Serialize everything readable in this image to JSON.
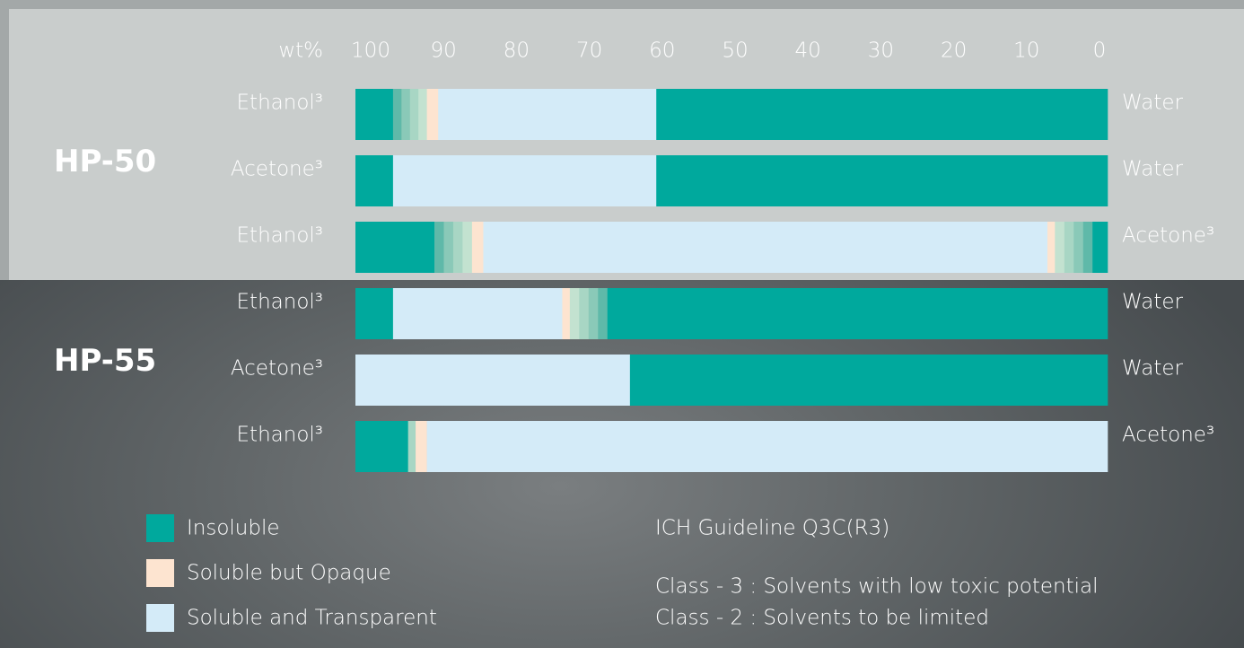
{
  "chart_data": {
    "type": "bar",
    "axis_label": "wt%",
    "xlim": [
      100,
      0
    ],
    "xticks": [
      100,
      90,
      80,
      70,
      60,
      50,
      40,
      30,
      20,
      10,
      0
    ],
    "groups": [
      {
        "name": "HP-50",
        "rows": [
          {
            "left": "Ethanol³",
            "right": "Water",
            "segments": [
              {
                "color": "#00a99d",
                "value": 5
              },
              {
                "color": [
                  "#5fb9a9",
                  "#8ac9b8",
                  "#a8d6c4",
                  "#c3e2d0"
                ],
                "value": 4.5
              },
              {
                "color": "#fde4d0",
                "value": 1.5
              },
              {
                "color": "#d4ebf8",
                "value": 29
              },
              {
                "color": "#00a99d",
                "value": 60
              }
            ]
          },
          {
            "left": "Acetone³",
            "right": "Water",
            "segments": [
              {
                "color": "#00a99d",
                "value": 5
              },
              {
                "color": "#d4ebf8",
                "value": 35
              },
              {
                "color": "#00a99d",
                "value": 60
              }
            ]
          },
          {
            "left": "Ethanol³",
            "right": "Acetone³",
            "segments": [
              {
                "color": "#00a99d",
                "value": 10.5
              },
              {
                "color": [
                  "#5fb9a9",
                  "#8ac9b8",
                  "#a8d6c4",
                  "#c3e2d0"
                ],
                "value": 5
              },
              {
                "color": "#fde4d0",
                "value": 1.5
              },
              {
                "color": "#d4ebf8",
                "value": 75
              },
              {
                "color": "#fde4d0",
                "value": 1
              },
              {
                "color": [
                  "#c3e2d0",
                  "#a8d6c4",
                  "#8ac9b8",
                  "#5fb9a9"
                ],
                "value": 5
              },
              {
                "color": "#00a99d",
                "value": 2
              }
            ]
          }
        ]
      },
      {
        "name": "HP-55",
        "rows": [
          {
            "left": "Ethanol³",
            "right": "Water",
            "segments": [
              {
                "color": "#00a99d",
                "value": 5
              },
              {
                "color": "#d4ebf8",
                "value": 22.5
              },
              {
                "color": "#fde4d0",
                "value": 1
              },
              {
                "color": [
                  "#c3e2d0",
                  "#a8d6c4",
                  "#8ac9b8",
                  "#5fb9a9"
                ],
                "value": 5
              },
              {
                "color": "#00a99d",
                "value": 66.5
              }
            ]
          },
          {
            "left": "Acetone³",
            "right": "Water",
            "segments": [
              {
                "color": "#d4ebf8",
                "value": 36.5
              },
              {
                "color": "#00a99d",
                "value": 63.5
              }
            ]
          },
          {
            "left": "Ethanol³",
            "right": "Acetone³",
            "segments": [
              {
                "color": "#00a99d",
                "value": 7
              },
              {
                "color": [
                  "#a8d6c4"
                ],
                "value": 1
              },
              {
                "color": "#fde4d0",
                "value": 1.5
              },
              {
                "color": "#d4ebf8",
                "value": 90.5
              }
            ]
          }
        ]
      }
    ],
    "legend": [
      {
        "name": "Insoluble",
        "color": "#00a99d"
      },
      {
        "name": "Soluble but Opaque",
        "color": "#fde4d0"
      },
      {
        "name": "Soluble and Transparent",
        "color": "#d4ebf8"
      }
    ],
    "notes": [
      "ICH Guideline Q3C(R3)",
      "Class - 3 : Solvents with low toxic potential",
      "Class - 2 : Solvents to be limited"
    ]
  }
}
